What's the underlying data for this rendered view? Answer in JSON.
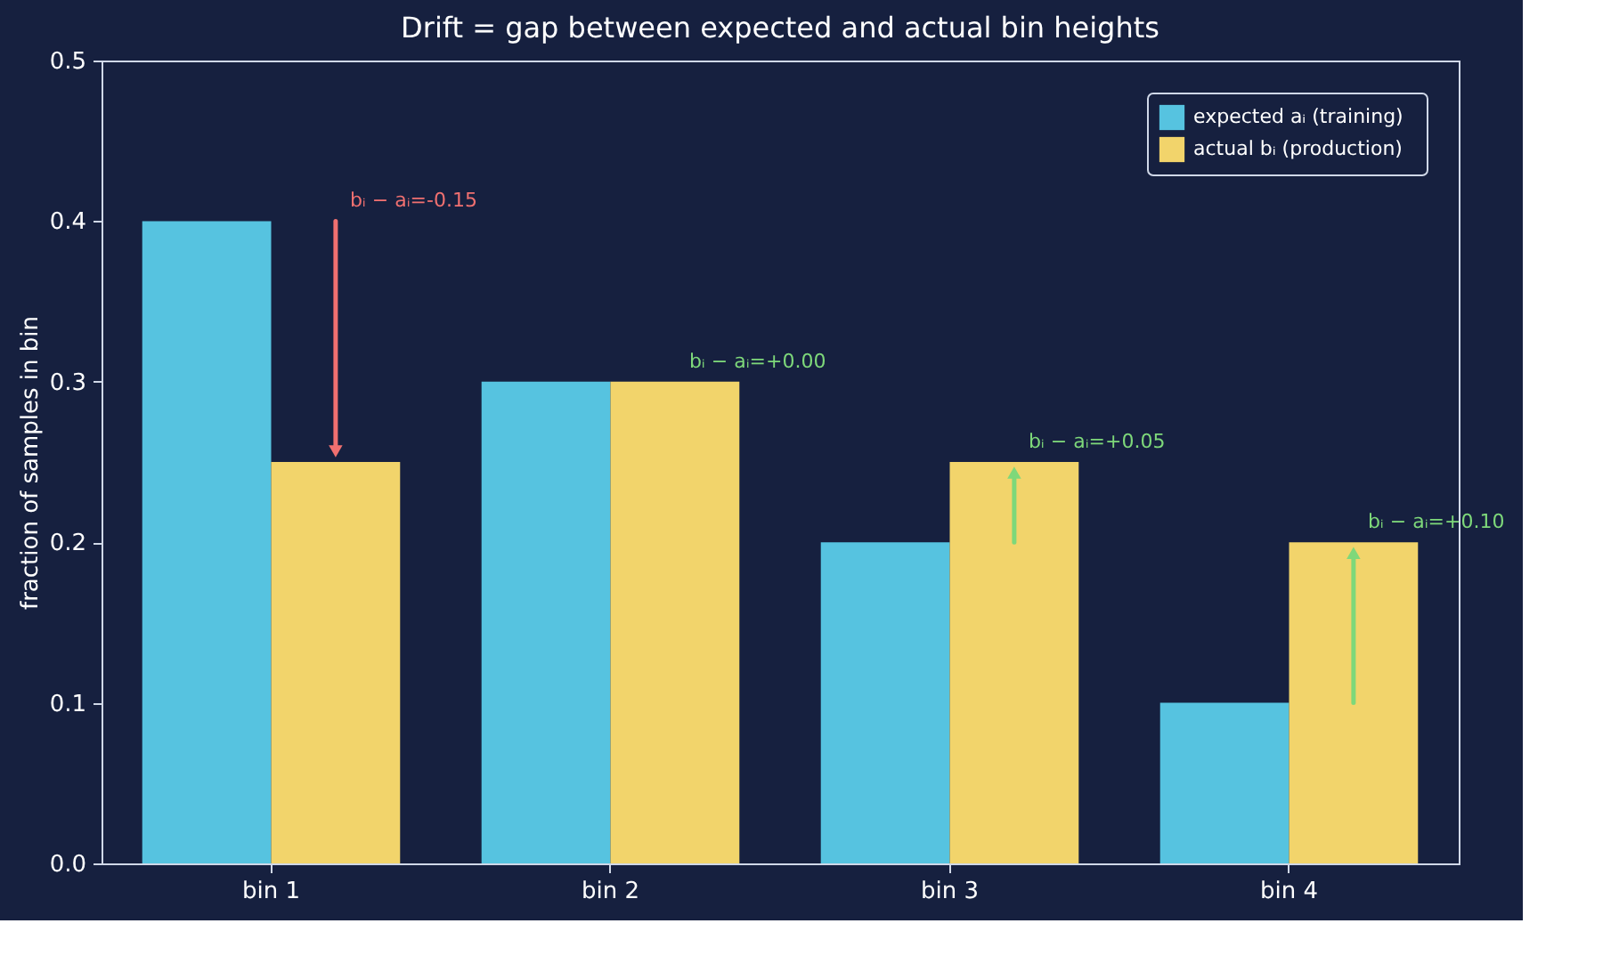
{
  "chart_data": {
    "type": "bar",
    "title": "Drift = gap between expected and actual bin heights",
    "categories": [
      "bin 1",
      "bin 2",
      "bin 3",
      "bin 4"
    ],
    "series": [
      {
        "name": "expected  aᵢ  (training)",
        "color": "#56c3e0",
        "values": [
          0.4,
          0.3,
          0.2,
          0.1
        ]
      },
      {
        "name": "actual  bᵢ  (production)",
        "color": "#f2d46b",
        "values": [
          0.25,
          0.3,
          0.25,
          0.2
        ]
      }
    ],
    "ylabel": "fraction of samples in bin",
    "ylim": [
      0,
      0.5
    ],
    "yticks": [
      {
        "value": 0,
        "label": "0.0"
      },
      0.1,
      0.2,
      0.3,
      0.4,
      0.5
    ],
    "grid": false,
    "legend": "top right",
    "annotations": [
      "bᵢ − aᵢ=-0.15",
      "bᵢ − aᵢ=+0.00",
      "bᵢ − aᵢ=+0.05",
      "bᵢ − aᵢ=+0.10"
    ]
  }
}
